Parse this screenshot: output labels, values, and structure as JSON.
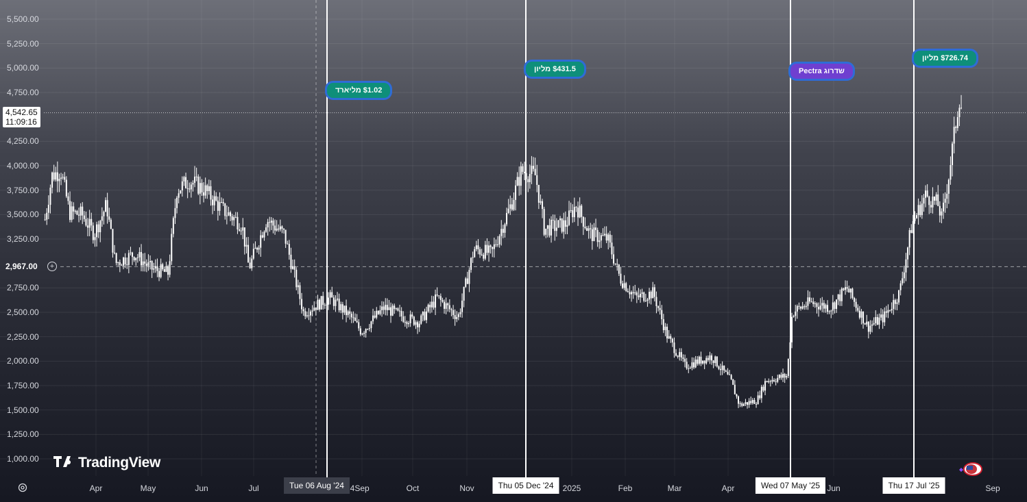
{
  "chart_data": {
    "type": "candlestick",
    "x_axis": {
      "labels": [
        "Apr",
        "May",
        "Jun",
        "Jul",
        "Sep",
        "Oct",
        "Nov",
        "2025",
        "Feb",
        "Mar",
        "Apr",
        "Jun",
        "Sep"
      ]
    },
    "y_axis": {
      "ticks": [
        "5,500.00",
        "5,250.00",
        "5,000.00",
        "4,750.00",
        "4,250.00",
        "4,000.00",
        "3,750.00",
        "3,500.00",
        "3,250.00",
        "2,750.00",
        "2,500.00",
        "2,250.00",
        "2,000.00",
        "1,750.00",
        "1,500.00",
        "1,250.00",
        "1,000.00"
      ],
      "ylim": [
        1000,
        5600
      ]
    },
    "current_price": {
      "value": "4,542.65",
      "countdown": "11:09:16"
    },
    "crosshair_price": "2,967.00",
    "series_approx": [
      {
        "x": "2024-03-11",
        "y": 3450
      },
      {
        "x": "2024-03-15",
        "y": 3900
      },
      {
        "x": "2024-03-20",
        "y": 3950
      },
      {
        "x": "2024-03-25",
        "y": 3520
      },
      {
        "x": "2024-04-01",
        "y": 3500
      },
      {
        "x": "2024-04-08",
        "y": 3300
      },
      {
        "x": "2024-04-15",
        "y": 3600
      },
      {
        "x": "2024-04-20",
        "y": 3000
      },
      {
        "x": "2024-05-01",
        "y": 3100
      },
      {
        "x": "2024-05-10",
        "y": 2950
      },
      {
        "x": "2024-05-20",
        "y": 2900
      },
      {
        "x": "2024-05-25",
        "y": 3750
      },
      {
        "x": "2024-06-01",
        "y": 3850
      },
      {
        "x": "2024-06-10",
        "y": 3750
      },
      {
        "x": "2024-06-20",
        "y": 3550
      },
      {
        "x": "2024-07-01",
        "y": 3400
      },
      {
        "x": "2024-07-05",
        "y": 2950
      },
      {
        "x": "2024-07-15",
        "y": 3450
      },
      {
        "x": "2024-07-25",
        "y": 3300
      },
      {
        "x": "2024-08-05",
        "y": 2500
      },
      {
        "x": "2024-08-20",
        "y": 2650
      },
      {
        "x": "2024-09-01",
        "y": 2450
      },
      {
        "x": "2024-09-07",
        "y": 2300
      },
      {
        "x": "2024-09-20",
        "y": 2550
      },
      {
        "x": "2024-10-01",
        "y": 2450
      },
      {
        "x": "2024-10-10",
        "y": 2400
      },
      {
        "x": "2024-10-20",
        "y": 2650
      },
      {
        "x": "2024-11-01",
        "y": 2450
      },
      {
        "x": "2024-11-10",
        "y": 3150
      },
      {
        "x": "2024-11-20",
        "y": 3100
      },
      {
        "x": "2024-12-01",
        "y": 3600
      },
      {
        "x": "2024-12-07",
        "y": 3950
      },
      {
        "x": "2024-12-15",
        "y": 3900
      },
      {
        "x": "2024-12-20",
        "y": 3350
      },
      {
        "x": "2025-01-01",
        "y": 3400
      },
      {
        "x": "2025-01-07",
        "y": 3600
      },
      {
        "x": "2025-01-15",
        "y": 3300
      },
      {
        "x": "2025-01-25",
        "y": 3250
      },
      {
        "x": "2025-02-01",
        "y": 2850
      },
      {
        "x": "2025-02-10",
        "y": 2650
      },
      {
        "x": "2025-02-20",
        "y": 2700
      },
      {
        "x": "2025-02-28",
        "y": 2250
      },
      {
        "x": "2025-03-10",
        "y": 1950
      },
      {
        "x": "2025-03-25",
        "y": 2050
      },
      {
        "x": "2025-04-05",
        "y": 1800
      },
      {
        "x": "2025-04-10",
        "y": 1550
      },
      {
        "x": "2025-04-20",
        "y": 1600
      },
      {
        "x": "2025-04-25",
        "y": 1800
      },
      {
        "x": "2025-05-07",
        "y": 1850
      },
      {
        "x": "2025-05-10",
        "y": 2500
      },
      {
        "x": "2025-05-20",
        "y": 2600
      },
      {
        "x": "2025-06-01",
        "y": 2550
      },
      {
        "x": "2025-06-10",
        "y": 2750
      },
      {
        "x": "2025-06-22",
        "y": 2350
      },
      {
        "x": "2025-07-01",
        "y": 2450
      },
      {
        "x": "2025-07-10",
        "y": 2700
      },
      {
        "x": "2025-07-17",
        "y": 3400
      },
      {
        "x": "2025-07-25",
        "y": 3700
      },
      {
        "x": "2025-08-01",
        "y": 3600
      },
      {
        "x": "2025-08-03",
        "y": 3450
      },
      {
        "x": "2025-08-07",
        "y": 3900
      },
      {
        "x": "2025-08-10",
        "y": 4300
      },
      {
        "x": "2025-08-13",
        "y": 4700
      },
      {
        "x": "2025-08-15",
        "y": 4550
      }
    ]
  },
  "events": [
    {
      "date_label": "Tue 06 Aug '24",
      "bubble": "$1.02 מליארד",
      "bubble_color": "#0e8f7a"
    },
    {
      "date_label": "Thu 05 Dec '24",
      "bubble": "$431.5 מליון",
      "bubble_color": "#0e8f7a"
    },
    {
      "date_label": "Wed 07 May '25",
      "bubble": "Pectra שדרוג",
      "bubble_color": "#6f3fd0"
    },
    {
      "date_label": "Thu 17 Jul '25",
      "bubble": "$726.74 מליון",
      "bubble_color": "#0e8f7a"
    }
  ],
  "logo": "TradingView",
  "partial_labels": {
    "after_aug": "4"
  },
  "icons": [
    "settings-icon",
    "crosshair-plus-icon",
    "flag-icon",
    "tradingview-logo-icon"
  ]
}
